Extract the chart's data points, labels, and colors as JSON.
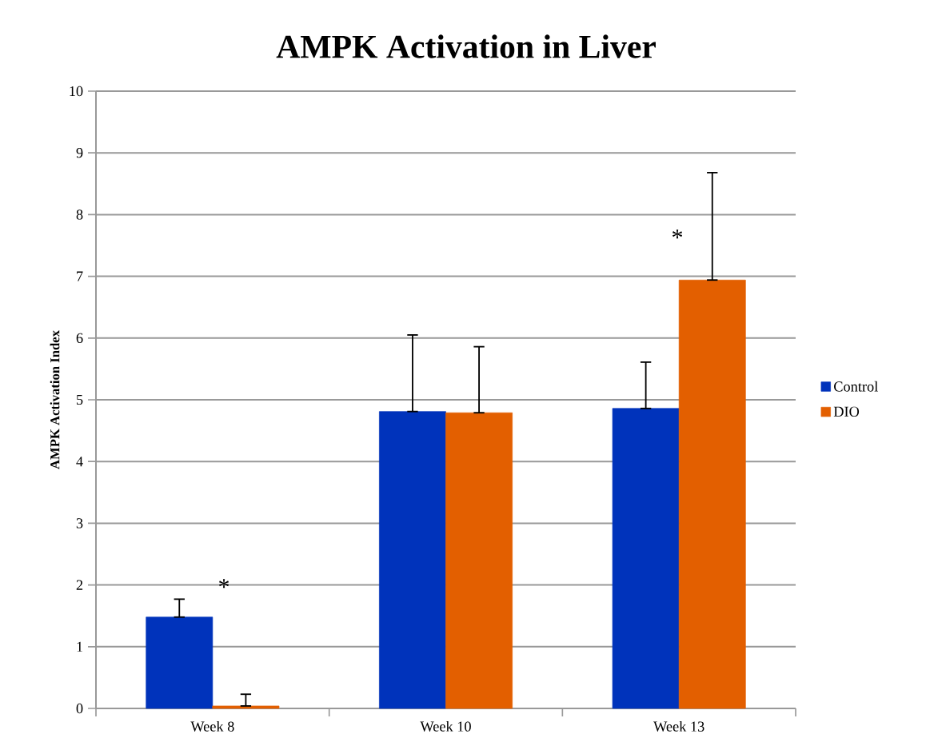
{
  "chart_data": {
    "type": "bar",
    "title": "AMPK Activation in Liver",
    "ylabel": "AMPK Activation Index",
    "categories": [
      "Week 8",
      "Week 10",
      "Week 13"
    ],
    "series": [
      {
        "name": "Control",
        "color": "#0033bb",
        "values": [
          1.48,
          4.81,
          4.86
        ],
        "errors": [
          [
            1.48,
            1.77
          ],
          [
            4.81,
            6.05
          ],
          [
            4.86,
            5.61
          ]
        ]
      },
      {
        "name": "DIO",
        "color": "#e35f00",
        "values": [
          0.04,
          4.79,
          6.94
        ],
        "errors": [
          [
            0.04,
            0.23
          ],
          [
            4.79,
            5.86
          ],
          [
            6.94,
            8.68
          ]
        ]
      }
    ],
    "ylim": [
      0,
      10
    ],
    "yticks": [
      0,
      1,
      2,
      3,
      4,
      5,
      6,
      7,
      8,
      9,
      10
    ],
    "grid": "y",
    "legend": "right",
    "annotations": [
      "*",
      "*"
    ]
  }
}
